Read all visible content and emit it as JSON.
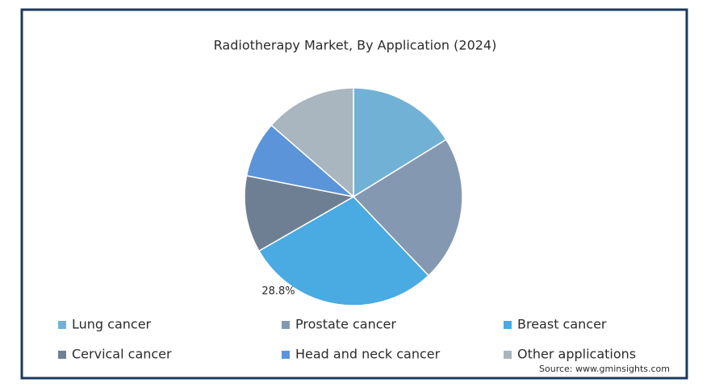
{
  "chart_data": {
    "type": "pie",
    "title": "Radiotherapy Market, By Application (2024)",
    "categories": [
      "Lung cancer",
      "Prostate cancer",
      "Breast cancer",
      "Cervical cancer",
      "Head and neck cancer",
      "Other applications"
    ],
    "values": [
      16.2,
      21.7,
      28.8,
      11.4,
      8.3,
      13.6
    ],
    "value_labels": [
      null,
      null,
      "28.8%",
      null,
      null,
      null
    ],
    "colors": [
      "#72b1d6",
      "#8598b1",
      "#4aaae2",
      "#6f7f93",
      "#5b94d9",
      "#a9b5bf"
    ],
    "source": "Source: www.gminsights.com"
  }
}
